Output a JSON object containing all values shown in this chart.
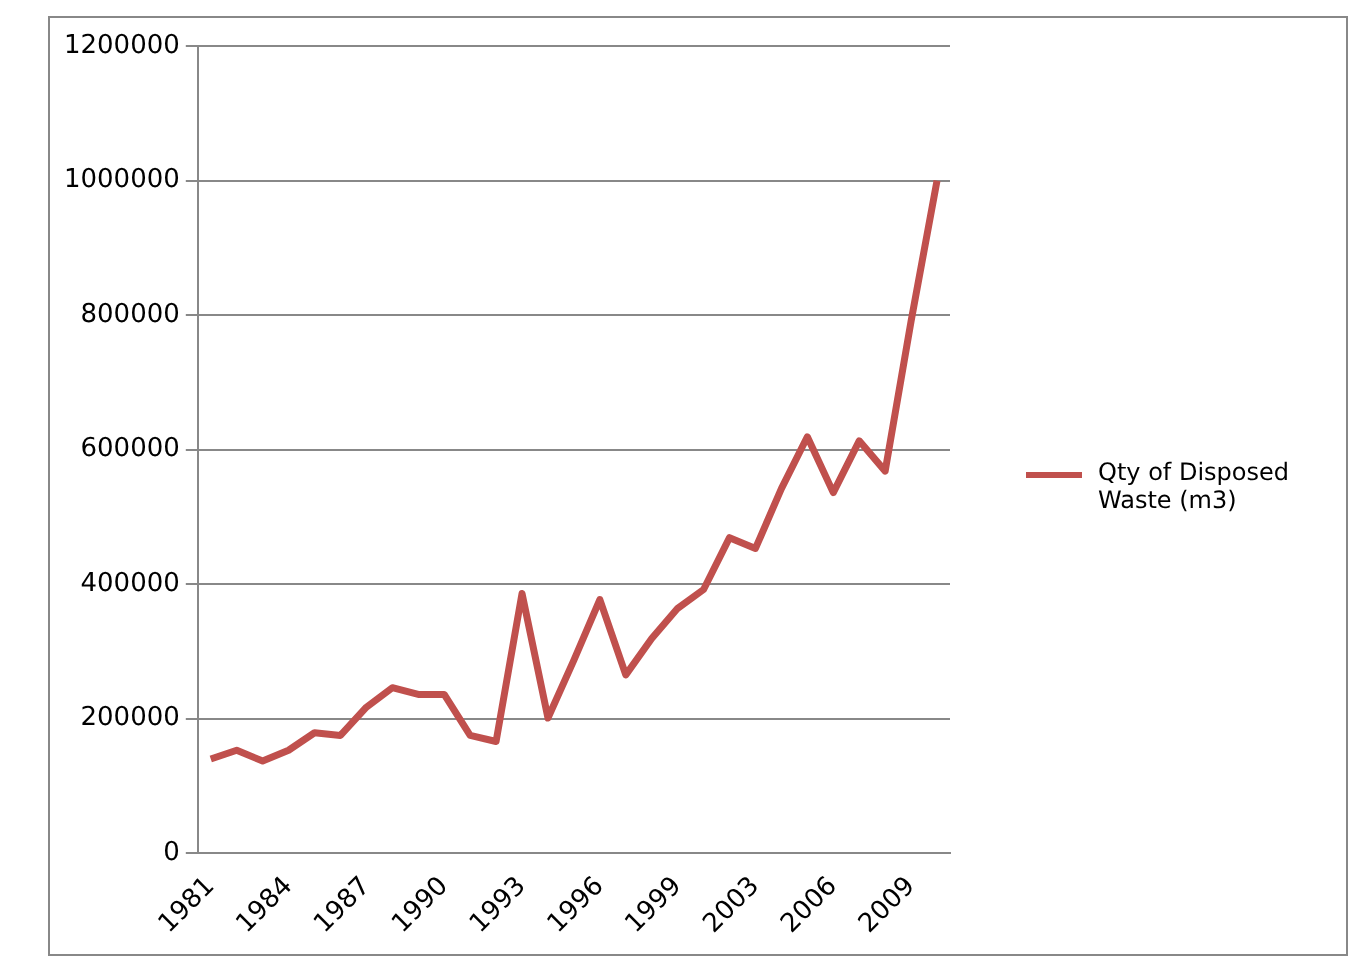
{
  "chart_data": {
    "type": "line",
    "categories": [
      "1981",
      null,
      null,
      "1984",
      null,
      null,
      "1987",
      null,
      null,
      "1990",
      null,
      null,
      "1993",
      null,
      null,
      "1996",
      null,
      null,
      "1999",
      null,
      null,
      "2003",
      null,
      null,
      "2006",
      null,
      null,
      "2009",
      null
    ],
    "series": [
      {
        "name": "Qty of Disposed Waste (m3)",
        "color": "#c0504d",
        "values": [
          140000,
          153000,
          137000,
          153000,
          179000,
          175000,
          217000,
          246000,
          236000,
          236000,
          175000,
          166000,
          386000,
          201000,
          287000,
          377000,
          265000,
          319000,
          364000,
          392000,
          469000,
          453000,
          542000,
          619000,
          536000,
          613000,
          568000,
          791000,
          1000000
        ]
      }
    ],
    "ylim": [
      0,
      1200000
    ],
    "yticks": [
      0,
      200000,
      400000,
      600000,
      800000,
      1000000,
      1200000
    ],
    "grid": "y",
    "legend": "right",
    "marker": "none",
    "line_style": "solid"
  }
}
